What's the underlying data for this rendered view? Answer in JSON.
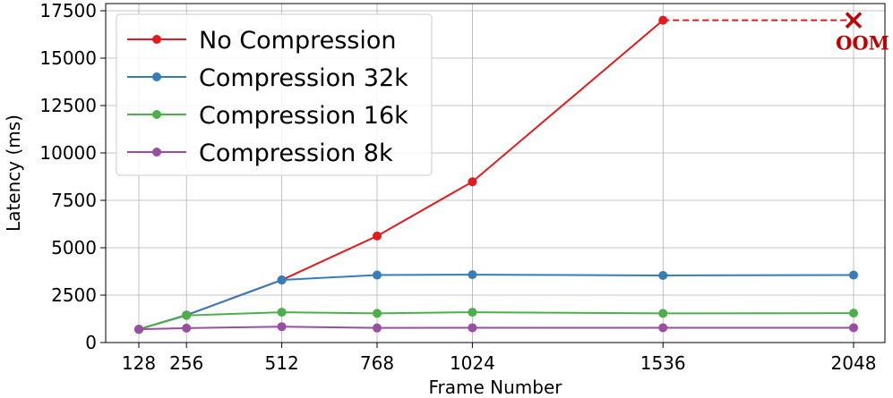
{
  "chart_data": {
    "type": "line",
    "xlabel": "Frame Number",
    "ylabel": "Latency (ms)",
    "x": [
      128,
      256,
      512,
      768,
      1024,
      1536,
      2048
    ],
    "x_ticks": [
      128,
      256,
      512,
      768,
      1024,
      1536,
      2048
    ],
    "xlim": [
      128,
      2048
    ],
    "ylim": [
      0,
      17500
    ],
    "y_ticks": [
      0,
      2500,
      5000,
      7500,
      10000,
      12500,
      15000,
      17500
    ],
    "grid": true,
    "legend_position": "top-left",
    "series": [
      {
        "name": "No Compression",
        "color": "#e41a1c",
        "values": [
          700,
          1450,
          3300,
          5620,
          8480,
          17000,
          null
        ]
      },
      {
        "name": "Compression 32k",
        "color": "#377eb8",
        "values": [
          700,
          1450,
          3300,
          3560,
          3580,
          3540,
          3560
        ]
      },
      {
        "name": "Compression 16k",
        "color": "#4daf4a",
        "values": [
          700,
          1430,
          1600,
          1540,
          1600,
          1540,
          1550
        ]
      },
      {
        "name": "Compression 8k",
        "color": "#984ea3",
        "values": [
          700,
          760,
          840,
          770,
          780,
          780,
          780
        ]
      }
    ],
    "annotation": {
      "text": "OOM",
      "series": "No Compression",
      "x": 2048,
      "y": 17000,
      "color": "#c00000"
    }
  }
}
